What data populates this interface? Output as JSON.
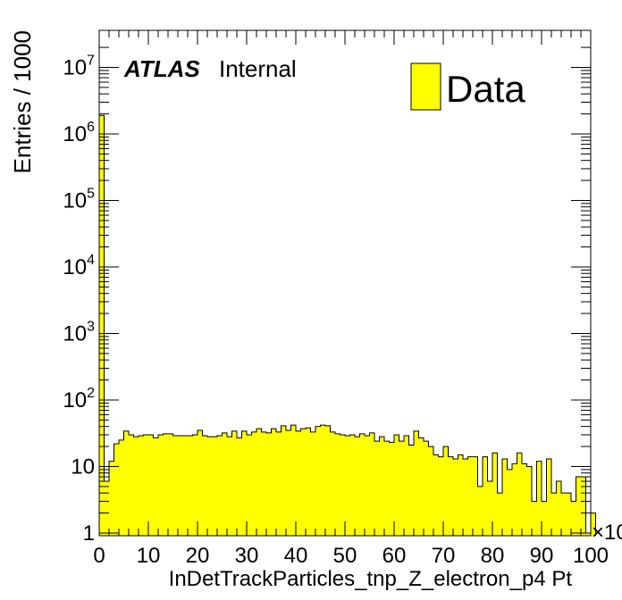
{
  "chart_data": {
    "type": "bar",
    "style": "filled-histogram",
    "fill_color": "#ffff00",
    "line_color": "#000000",
    "xlabel": "InDetTrackParticles_tnp_Z_electron_p4 Pt",
    "ylabel": "Entries / 1000",
    "x_exponent_label": "×10",
    "xlim": [
      0,
      100
    ],
    "ylim": [
      1,
      25000000
    ],
    "y_scale": "log",
    "bin_width": 1,
    "x_ticks": [
      "0",
      "10",
      "20",
      "30",
      "40",
      "50",
      "60",
      "70",
      "80",
      "90",
      "100"
    ],
    "y_ticks": [
      {
        "base": "1",
        "exp": ""
      },
      {
        "base": "10",
        "exp": ""
      },
      {
        "base": "10",
        "exp": "2"
      },
      {
        "base": "10",
        "exp": "3"
      },
      {
        "base": "10",
        "exp": "4"
      },
      {
        "base": "10",
        "exp": "5"
      },
      {
        "base": "10",
        "exp": "6"
      },
      {
        "base": "10",
        "exp": "7"
      }
    ],
    "annotation": {
      "bold": "ATLAS",
      "normal": "Internal"
    },
    "legend": {
      "label": "Data",
      "placement": "top-right"
    },
    "series": [
      {
        "name": "Data",
        "values": [
          1900000,
          6,
          12,
          22,
          25,
          34,
          30,
          28,
          29,
          30,
          30,
          27,
          30,
          31,
          31,
          29,
          29,
          29,
          29,
          30,
          35,
          29,
          28,
          28,
          29,
          32,
          28,
          34,
          27,
          34,
          30,
          33,
          37,
          33,
          32,
          37,
          33,
          41,
          35,
          42,
          34,
          37,
          38,
          33,
          40,
          42,
          41,
          33,
          31,
          30,
          29,
          30,
          28,
          31,
          29,
          32,
          24,
          28,
          24,
          23,
          30,
          24,
          29,
          21,
          34,
          27,
          24,
          20,
          15,
          14,
          20,
          14,
          13,
          15,
          13,
          14,
          14,
          5,
          14,
          6,
          16,
          4,
          13,
          9,
          11,
          16,
          11,
          10,
          3,
          12,
          3,
          13,
          4,
          6,
          4,
          4,
          3,
          7,
          7,
          1,
          2
        ]
      }
    ]
  }
}
